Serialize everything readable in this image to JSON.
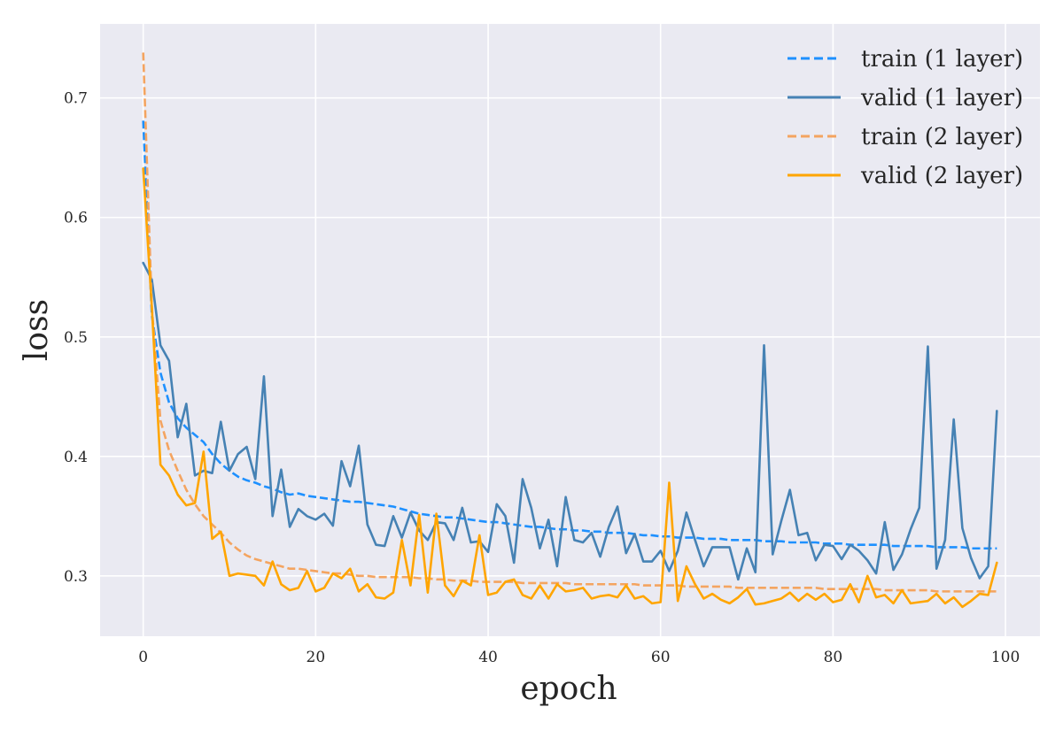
{
  "chart_data": {
    "type": "line",
    "xlabel": "epoch",
    "ylabel": "loss",
    "xlim": [
      -5,
      104
    ],
    "ylim": [
      0.2495,
      0.762
    ],
    "xticks": [
      0,
      20,
      40,
      60,
      80,
      100
    ],
    "yticks": [
      0.3,
      0.4,
      0.5,
      0.6,
      0.7
    ],
    "ytick_labels": [
      "0.3",
      "0.4",
      "0.5",
      "0.6",
      "0.7"
    ],
    "grid": true,
    "legend_position": "top-right",
    "x": [
      0,
      1,
      2,
      3,
      4,
      5,
      6,
      7,
      8,
      9,
      10,
      11,
      12,
      13,
      14,
      15,
      16,
      17,
      18,
      19,
      20,
      21,
      22,
      23,
      24,
      25,
      26,
      27,
      28,
      29,
      30,
      31,
      32,
      33,
      34,
      35,
      36,
      37,
      38,
      39,
      40,
      41,
      42,
      43,
      44,
      45,
      46,
      47,
      48,
      49,
      50,
      51,
      52,
      53,
      54,
      55,
      56,
      57,
      58,
      59,
      60,
      61,
      62,
      63,
      64,
      65,
      66,
      67,
      68,
      69,
      70,
      71,
      72,
      73,
      74,
      75,
      76,
      77,
      78,
      79,
      80,
      81,
      82,
      83,
      84,
      85,
      86,
      87,
      88,
      89,
      90,
      91,
      92,
      93,
      94,
      95,
      96,
      97,
      98,
      99
    ],
    "series": [
      {
        "name": "train (1 layer)",
        "color": "#1e90ff",
        "style": "dashed",
        "values": [
          0.681,
          0.518,
          0.47,
          0.445,
          0.432,
          0.424,
          0.418,
          0.412,
          0.402,
          0.394,
          0.388,
          0.383,
          0.38,
          0.378,
          0.375,
          0.373,
          0.37,
          0.368,
          0.369,
          0.367,
          0.366,
          0.365,
          0.364,
          0.363,
          0.362,
          0.362,
          0.361,
          0.36,
          0.359,
          0.358,
          0.356,
          0.354,
          0.352,
          0.351,
          0.35,
          0.349,
          0.349,
          0.348,
          0.347,
          0.346,
          0.345,
          0.345,
          0.344,
          0.343,
          0.342,
          0.341,
          0.341,
          0.34,
          0.339,
          0.339,
          0.338,
          0.338,
          0.337,
          0.337,
          0.336,
          0.336,
          0.336,
          0.335,
          0.334,
          0.334,
          0.333,
          0.333,
          0.332,
          0.332,
          0.332,
          0.331,
          0.331,
          0.331,
          0.33,
          0.33,
          0.33,
          0.33,
          0.329,
          0.329,
          0.329,
          0.328,
          0.328,
          0.328,
          0.328,
          0.327,
          0.327,
          0.327,
          0.326,
          0.326,
          0.326,
          0.326,
          0.326,
          0.325,
          0.325,
          0.325,
          0.325,
          0.325,
          0.324,
          0.324,
          0.324,
          0.324,
          0.323,
          0.323,
          0.323,
          0.323
        ]
      },
      {
        "name": "valid (1 layer)",
        "color": "#4682b4",
        "style": "solid",
        "values": [
          0.562,
          0.548,
          0.493,
          0.48,
          0.416,
          0.444,
          0.384,
          0.388,
          0.386,
          0.429,
          0.388,
          0.402,
          0.408,
          0.381,
          0.467,
          0.35,
          0.389,
          0.341,
          0.356,
          0.35,
          0.347,
          0.352,
          0.342,
          0.396,
          0.375,
          0.409,
          0.343,
          0.326,
          0.325,
          0.35,
          0.332,
          0.353,
          0.338,
          0.33,
          0.345,
          0.344,
          0.33,
          0.357,
          0.328,
          0.329,
          0.32,
          0.36,
          0.35,
          0.311,
          0.381,
          0.357,
          0.323,
          0.347,
          0.308,
          0.366,
          0.33,
          0.328,
          0.336,
          0.316,
          0.341,
          0.358,
          0.319,
          0.335,
          0.312,
          0.312,
          0.321,
          0.304,
          0.321,
          0.353,
          0.33,
          0.308,
          0.324,
          0.324,
          0.324,
          0.297,
          0.323,
          0.303,
          0.493,
          0.318,
          0.346,
          0.372,
          0.334,
          0.336,
          0.313,
          0.326,
          0.325,
          0.314,
          0.326,
          0.321,
          0.313,
          0.302,
          0.345,
          0.305,
          0.318,
          0.339,
          0.357,
          0.492,
          0.306,
          0.33,
          0.431,
          0.34,
          0.315,
          0.298,
          0.308,
          0.438
        ]
      },
      {
        "name": "train (2 layer)",
        "color": "#f4a460",
        "style": "dashed",
        "values": [
          0.738,
          0.525,
          0.43,
          0.405,
          0.388,
          0.372,
          0.36,
          0.35,
          0.343,
          0.336,
          0.328,
          0.322,
          0.317,
          0.314,
          0.312,
          0.31,
          0.308,
          0.306,
          0.306,
          0.305,
          0.304,
          0.303,
          0.302,
          0.302,
          0.301,
          0.3,
          0.3,
          0.299,
          0.299,
          0.299,
          0.299,
          0.299,
          0.298,
          0.298,
          0.297,
          0.297,
          0.296,
          0.296,
          0.296,
          0.295,
          0.295,
          0.295,
          0.295,
          0.295,
          0.294,
          0.294,
          0.294,
          0.294,
          0.294,
          0.294,
          0.293,
          0.293,
          0.293,
          0.293,
          0.293,
          0.293,
          0.293,
          0.293,
          0.292,
          0.292,
          0.292,
          0.292,
          0.292,
          0.291,
          0.291,
          0.291,
          0.291,
          0.291,
          0.291,
          0.29,
          0.29,
          0.29,
          0.29,
          0.29,
          0.29,
          0.29,
          0.29,
          0.29,
          0.29,
          0.289,
          0.289,
          0.289,
          0.289,
          0.289,
          0.289,
          0.289,
          0.288,
          0.288,
          0.288,
          0.288,
          0.288,
          0.288,
          0.287,
          0.287,
          0.287,
          0.287,
          0.287,
          0.287,
          0.287,
          0.287
        ]
      },
      {
        "name": "valid (2 layer)",
        "color": "#ffa500",
        "style": "solid",
        "values": [
          0.641,
          0.525,
          0.393,
          0.384,
          0.368,
          0.359,
          0.361,
          0.404,
          0.331,
          0.337,
          0.3,
          0.302,
          0.301,
          0.3,
          0.292,
          0.312,
          0.293,
          0.288,
          0.29,
          0.304,
          0.287,
          0.29,
          0.302,
          0.298,
          0.306,
          0.287,
          0.293,
          0.282,
          0.281,
          0.286,
          0.33,
          0.292,
          0.351,
          0.286,
          0.352,
          0.292,
          0.283,
          0.296,
          0.292,
          0.334,
          0.284,
          0.286,
          0.295,
          0.297,
          0.284,
          0.281,
          0.292,
          0.281,
          0.293,
          0.287,
          0.288,
          0.29,
          0.281,
          0.283,
          0.284,
          0.282,
          0.292,
          0.281,
          0.283,
          0.277,
          0.278,
          0.378,
          0.279,
          0.308,
          0.293,
          0.281,
          0.285,
          0.28,
          0.277,
          0.282,
          0.289,
          0.276,
          0.277,
          0.279,
          0.281,
          0.286,
          0.279,
          0.285,
          0.28,
          0.285,
          0.278,
          0.28,
          0.293,
          0.278,
          0.3,
          0.282,
          0.284,
          0.277,
          0.288,
          0.277,
          0.278,
          0.279,
          0.285,
          0.277,
          0.282,
          0.274,
          0.279,
          0.285,
          0.284,
          0.311
        ]
      }
    ]
  }
}
